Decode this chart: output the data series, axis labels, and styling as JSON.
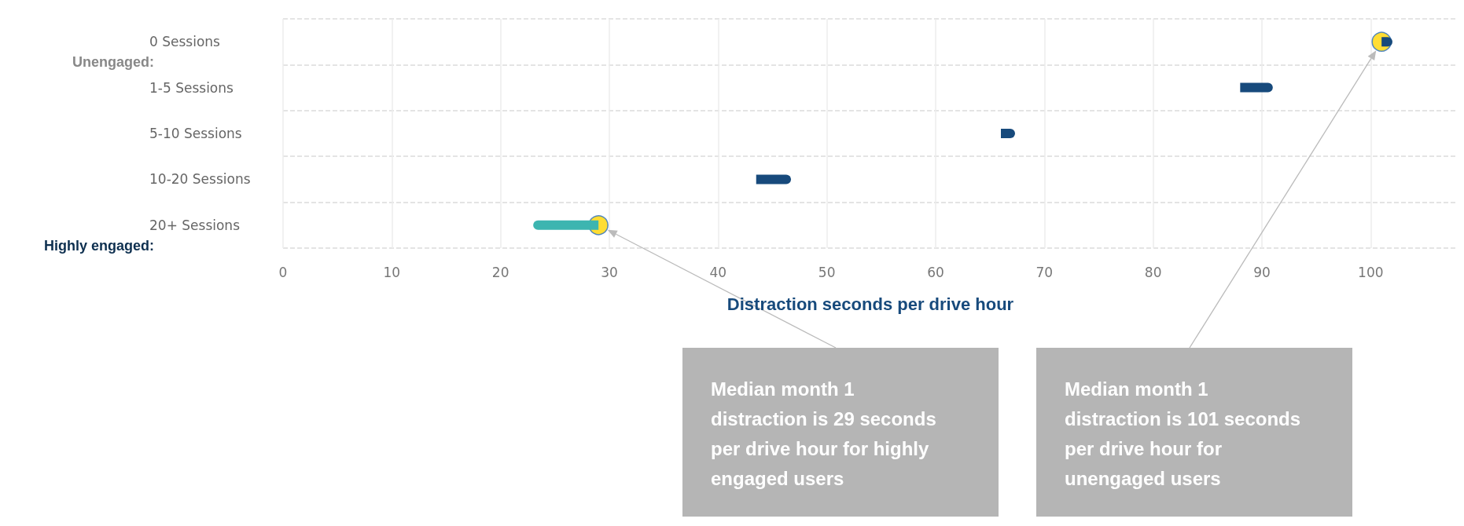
{
  "chart_data": {
    "type": "bar",
    "orientation": "horizontal",
    "xlabel": "Distraction seconds per drive hour",
    "categories": [
      "0 Sessions",
      "1-5 Sessions",
      "5-10 Sessions",
      "10-20 Sessions",
      "20+ Sessions"
    ],
    "series": [
      {
        "colors": [
          "#174a7c",
          "#174a7c",
          "#174a7c",
          "#174a7c",
          "#3db5b0"
        ],
        "base": [
          101,
          88,
          66,
          43.5,
          29
        ],
        "values": [
          1,
          3,
          1.3,
          3.2,
          -6
        ]
      },
      {
        "type": "scatter",
        "color": "#ffd400",
        "x": [
          "20+ Sessions",
          "0 Sessions"
        ],
        "values": [
          29,
          101
        ]
      }
    ],
    "xlim": [
      0,
      108
    ],
    "xticks": [
      0,
      10,
      20,
      30,
      40,
      50,
      60,
      70,
      80,
      90,
      100
    ],
    "grid": true,
    "annotations": [
      "Unengaged:",
      "Highly engaged:",
      "Median month 1 distraction is 29 seconds per drive hour for highly engaged users",
      "Median month 1 distraction is 101 seconds per drive hour for unengaged users"
    ]
  }
}
